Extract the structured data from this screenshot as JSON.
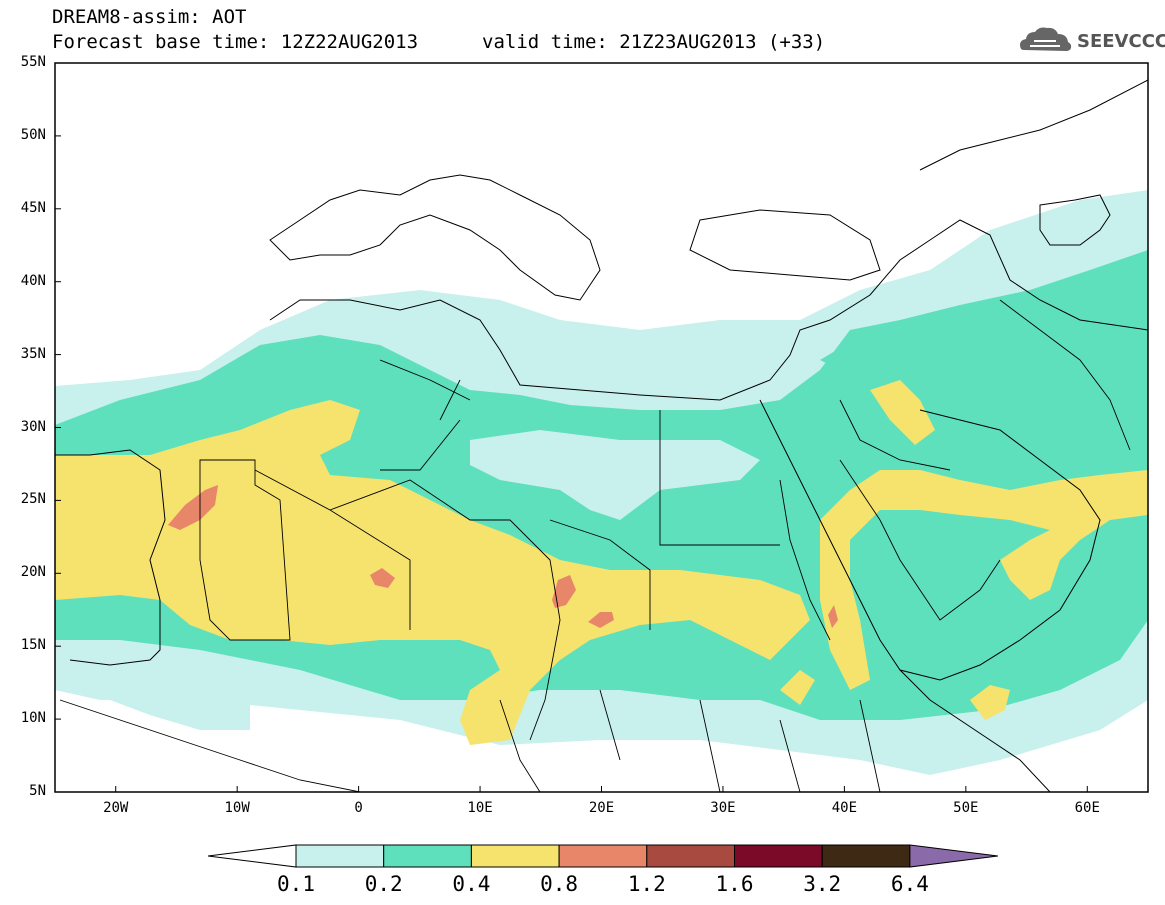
{
  "header": {
    "title_line1": "DREAM8-assim: AOT",
    "title_line2": "Forecast base time: 12Z22AUG2013",
    "valid_time": "valid time: 21Z23AUG2013 (+33)",
    "logo_text": "SEEVCCC"
  },
  "map": {
    "lon_range": [
      -25,
      65
    ],
    "lat_range": [
      5,
      55
    ],
    "y_ticks": [
      "55N",
      "50N",
      "45N",
      "40N",
      "35N",
      "30N",
      "25N",
      "20N",
      "15N",
      "10N",
      "5N"
    ],
    "x_ticks": [
      "20W",
      "10W",
      "0",
      "10E",
      "20E",
      "30E",
      "40E",
      "50E",
      "60E"
    ]
  },
  "colorbar": {
    "labels": [
      "0.1",
      "0.2",
      "0.4",
      "0.8",
      "1.2",
      "1.6",
      "3.2",
      "6.4"
    ],
    "colors": [
      "#ffffff",
      "#c8f0ec",
      "#5ee0bc",
      "#f5e36e",
      "#e8866a",
      "#a84a40",
      "#7a0a28",
      "#3e2a14",
      "#8a6aa8"
    ]
  }
}
